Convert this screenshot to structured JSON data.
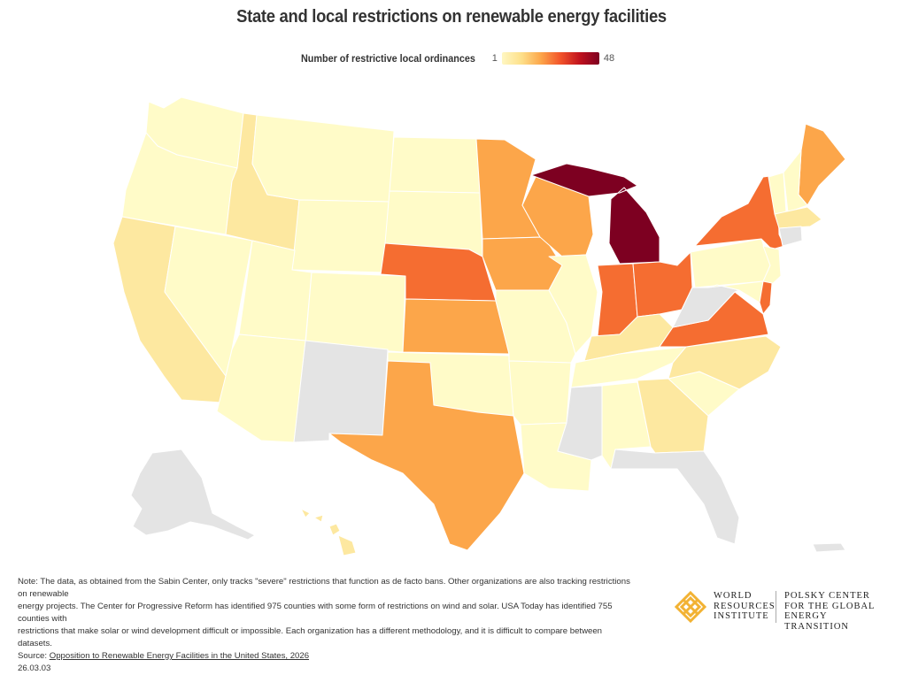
{
  "title": "State and local restrictions on renewable energy facilities",
  "legend": {
    "label": "Number of restrictive local ordinances",
    "min": "1",
    "max": "48"
  },
  "colors": {
    "no_data": "#e4e4e4",
    "scale": [
      "#fffbc8",
      "#fde8a0",
      "#fca64a",
      "#f56d31",
      "#ef5a25",
      "#7d0021"
    ]
  },
  "states": [
    {
      "name": "Washington",
      "level": 0
    },
    {
      "name": "Oregon",
      "level": 0
    },
    {
      "name": "California",
      "level": 1
    },
    {
      "name": "Nevada",
      "level": 0
    },
    {
      "name": "Idaho",
      "level": 1
    },
    {
      "name": "Montana",
      "level": 0
    },
    {
      "name": "Wyoming",
      "level": 0
    },
    {
      "name": "Utah",
      "level": 0
    },
    {
      "name": "Arizona",
      "level": 0
    },
    {
      "name": "Colorado",
      "level": 0
    },
    {
      "name": "New Mexico",
      "level": "none"
    },
    {
      "name": "North Dakota",
      "level": 0
    },
    {
      "name": "South Dakota",
      "level": 0
    },
    {
      "name": "Nebraska",
      "level": 3
    },
    {
      "name": "Kansas",
      "level": 2
    },
    {
      "name": "Oklahoma",
      "level": 0
    },
    {
      "name": "Texas",
      "level": 2
    },
    {
      "name": "Minnesota",
      "level": 2
    },
    {
      "name": "Iowa",
      "level": 2
    },
    {
      "name": "Missouri",
      "level": 0
    },
    {
      "name": "Arkansas",
      "level": 0
    },
    {
      "name": "Louisiana",
      "level": 0
    },
    {
      "name": "Wisconsin",
      "level": 2
    },
    {
      "name": "Illinois",
      "level": 0
    },
    {
      "name": "Michigan",
      "level": 5
    },
    {
      "name": "Indiana",
      "level": 3
    },
    {
      "name": "Ohio",
      "level": 3
    },
    {
      "name": "Kentucky",
      "level": 1
    },
    {
      "name": "Tennessee",
      "level": 0
    },
    {
      "name": "Mississippi",
      "level": "none"
    },
    {
      "name": "Alabama",
      "level": 0
    },
    {
      "name": "Georgia",
      "level": 1
    },
    {
      "name": "Florida",
      "level": "none"
    },
    {
      "name": "South Carolina",
      "level": 0
    },
    {
      "name": "North Carolina",
      "level": 1
    },
    {
      "name": "Virginia",
      "level": 3
    },
    {
      "name": "West Virginia",
      "level": "none"
    },
    {
      "name": "Pennsylvania",
      "level": 0
    },
    {
      "name": "New York",
      "level": 3
    },
    {
      "name": "Maine",
      "level": 2
    },
    {
      "name": "Vermont",
      "level": 0
    },
    {
      "name": "New Hampshire",
      "level": 0
    },
    {
      "name": "Massachusetts",
      "level": 1
    },
    {
      "name": "Connecticut",
      "level": "none"
    },
    {
      "name": "New Jersey",
      "level": 0
    },
    {
      "name": "Maryland",
      "level": 0
    },
    {
      "name": "Delaware",
      "level": 3
    },
    {
      "name": "Alaska",
      "level": "none"
    },
    {
      "name": "Hawaii",
      "level": 1
    },
    {
      "name": "Puerto Rico",
      "level": "none"
    }
  ],
  "note": [
    "Note: The data, as obtained from the Sabin Center, only tracks \"severe\" restrictions that function as de facto bans. Other organizations are also tracking restrictions on renewable",
    "energy projects. The Center for Progressive Reform has identified 975 counties with some form of restrictions on wind and solar. USA Today has identified 755 counties with",
    "restrictions that make solar or wind development difficult or impossible. Each organization has a different methodology, and it is difficult to compare between datasets."
  ],
  "source_label": "Source: ",
  "source_link": "Opposition to Renewable Energy Facilities in the United States, 2026",
  "date": "26.03.03",
  "logos": {
    "wri": [
      "WORLD",
      "RESOURCES",
      "INSTITUTE"
    ],
    "polsky": [
      "POLSKY CENTER",
      "FOR THE GLOBAL",
      "ENERGY TRANSITION"
    ]
  }
}
